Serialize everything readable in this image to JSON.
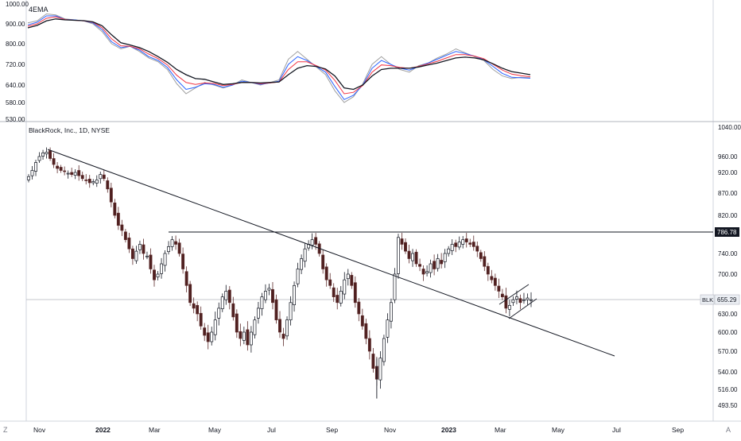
{
  "chart_data": [
    {
      "type": "line",
      "panel": "indicator",
      "title": "4EMA",
      "y_ticks": [
        1000.0,
        900.0,
        800.0,
        720.0,
        640.0,
        580.0,
        530.0
      ],
      "ylim": [
        530,
        1000
      ],
      "x_labels": [
        "Nov",
        "2022",
        "Mar",
        "May",
        "Jul",
        "Sep",
        "Nov",
        "2023",
        "Mar",
        "May",
        "Jul",
        "Sep"
      ],
      "series": [
        {
          "color": "#9e9e9e",
          "values": [
            905,
            915,
            950,
            945,
            925,
            920,
            915,
            900,
            860,
            800,
            780,
            790,
            770,
            745,
            730,
            700,
            645,
            610,
            630,
            650,
            640,
            630,
            640,
            660,
            650,
            640,
            650,
            660,
            740,
            770,
            740,
            710,
            680,
            620,
            580,
            600,
            645,
            720,
            750,
            720,
            700,
            690,
            715,
            725,
            745,
            760,
            780,
            765,
            750,
            735,
            700,
            675,
            665,
            670,
            668
          ]
        },
        {
          "color": "#2962ff",
          "values": [
            895,
            908,
            940,
            940,
            922,
            920,
            915,
            905,
            870,
            810,
            785,
            790,
            775,
            750,
            735,
            708,
            660,
            625,
            632,
            645,
            642,
            632,
            640,
            655,
            650,
            642,
            648,
            655,
            720,
            750,
            735,
            712,
            690,
            635,
            590,
            605,
            640,
            705,
            735,
            720,
            705,
            698,
            712,
            725,
            740,
            755,
            770,
            762,
            752,
            738,
            712,
            685,
            670,
            668,
            666
          ]
        },
        {
          "color": "#f23645",
          "values": [
            888,
            900,
            928,
            935,
            922,
            918,
            915,
            908,
            880,
            825,
            792,
            790,
            780,
            760,
            742,
            718,
            678,
            650,
            642,
            648,
            646,
            638,
            642,
            650,
            650,
            645,
            648,
            652,
            700,
            730,
            730,
            715,
            698,
            658,
            610,
            615,
            638,
            690,
            718,
            715,
            708,
            705,
            712,
            722,
            732,
            745,
            758,
            758,
            752,
            742,
            720,
            698,
            682,
            676,
            672
          ]
        },
        {
          "color": "#131722",
          "values": [
            880,
            892,
            915,
            925,
            920,
            918,
            916,
            910,
            890,
            845,
            805,
            795,
            785,
            770,
            750,
            728,
            700,
            680,
            665,
            662,
            652,
            642,
            645,
            650,
            650,
            648,
            650,
            652,
            680,
            705,
            715,
            712,
            702,
            675,
            630,
            625,
            640,
            675,
            700,
            705,
            705,
            705,
            710,
            718,
            725,
            735,
            745,
            748,
            745,
            738,
            722,
            705,
            692,
            686,
            680
          ]
        }
      ]
    },
    {
      "type": "candlestick",
      "panel": "price",
      "title": "BlackRock, Inc., 1D, NYSE",
      "y_ticks": [
        1040.0,
        960.0,
        920.0,
        870.0,
        820.0,
        740.0,
        700.0,
        630.0,
        600.0,
        570.0,
        540.0,
        516.0,
        493.5
      ],
      "ylim": [
        485,
        1045
      ],
      "x_labels": [
        "Nov",
        "2022",
        "Mar",
        "May",
        "Jul",
        "Sep",
        "Nov",
        "2023",
        "Mar",
        "May",
        "Jul",
        "Sep"
      ],
      "price_labels": [
        {
          "text": "786.78",
          "value": 786.78,
          "style": "dark"
        },
        {
          "symbol": "BLK",
          "text": "655.29",
          "value": 655.29,
          "style": "light"
        }
      ],
      "closes": [
        910,
        925,
        945,
        960,
        970,
        972,
        955,
        940,
        930,
        925,
        922,
        918,
        915,
        920,
        912,
        905,
        900,
        895,
        898,
        902,
        915,
        905,
        880,
        850,
        820,
        800,
        790,
        770,
        750,
        730,
        745,
        760,
        740,
        735,
        710,
        690,
        700,
        720,
        740,
        755,
        770,
        760,
        740,
        710,
        680,
        650,
        640,
        630,
        610,
        595,
        585,
        600,
        620,
        640,
        660,
        670,
        650,
        625,
        600,
        590,
        600,
        580,
        600,
        620,
        640,
        660,
        670,
        675,
        650,
        620,
        600,
        590,
        620,
        650,
        680,
        710,
        730,
        750,
        760,
        770,
        760,
        740,
        710,
        690,
        680,
        660,
        650,
        670,
        690,
        700,
        680,
        650,
        630,
        610,
        590,
        570,
        545,
        530,
        560,
        590,
        620,
        650,
        700,
        775,
        760,
        745,
        730,
        740,
        720,
        715,
        700,
        705,
        720,
        710,
        730,
        720,
        740,
        750,
        760,
        755,
        765,
        770,
        765,
        760,
        755,
        745,
        730,
        715,
        700,
        690,
        680,
        670,
        660,
        640,
        645,
        655,
        660,
        650,
        655,
        658,
        655
      ]
    }
  ],
  "symbol_box": {
    "label": "BLK"
  },
  "bottom_bar": {
    "left_label": "Z",
    "right_label": "A"
  }
}
